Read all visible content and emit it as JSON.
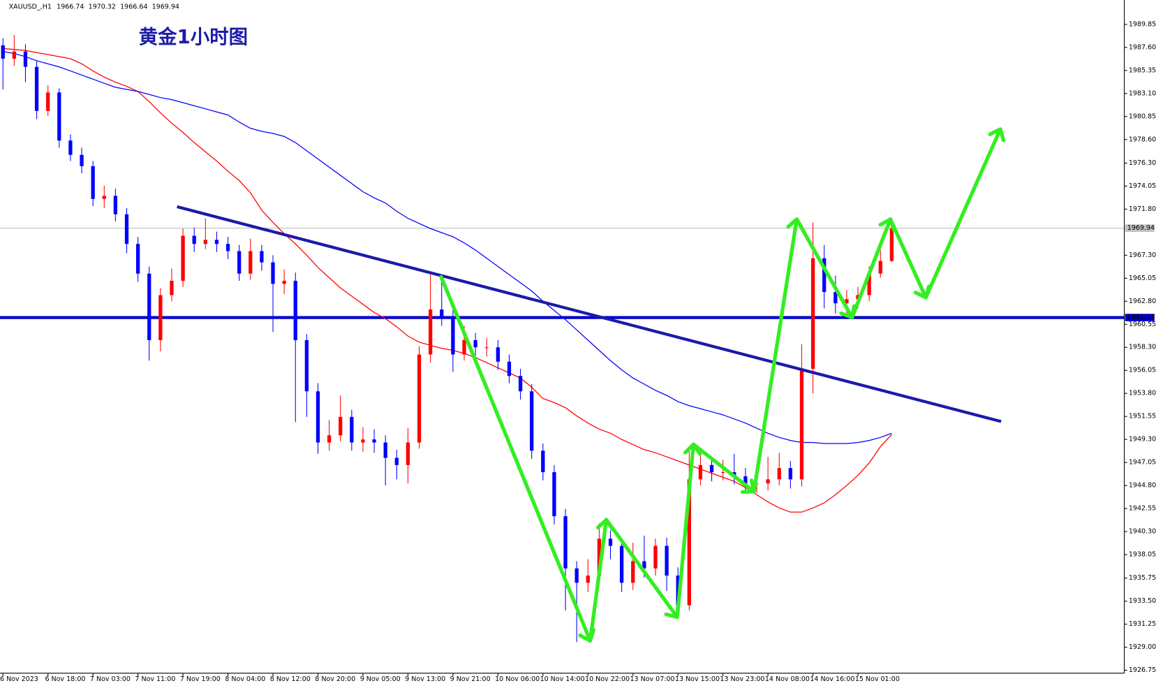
{
  "chart_data": {
    "type": "candlestick",
    "title": "黄金1小时图",
    "symbol": "XAUUSD_,H1",
    "up_color": "#ff0000",
    "down_color": "#0000ff",
    "hline": 1961.21,
    "hline_color": "#0000cc",
    "ylim": [
      1926.46,
      1992.23
    ],
    "yticks": [
      1989.85,
      {
        "value": 1987.6,
        "label": "1987.60"
      },
      1985.35,
      {
        "value": 1983.1,
        "label": "1983.10"
      },
      1980.85,
      {
        "value": 1978.6,
        "label": "1978.60"
      },
      {
        "value": 1976.3,
        "label": "1976.30"
      },
      1974.05,
      {
        "value": 1971.8,
        "label": "1971.80"
      },
      {
        "value": 1967.3,
        "label": "1967.30"
      },
      1965.05,
      {
        "value": 1962.8,
        "label": "1962.80"
      },
      1960.55,
      {
        "value": 1958.3,
        "label": "1958.30"
      },
      1956.05,
      {
        "value": 1953.8,
        "label": "1953.80"
      },
      1951.55,
      {
        "value": 1949.3,
        "label": "1949.30"
      },
      1947.05,
      {
        "value": 1944.8,
        "label": "1944.80"
      },
      1942.55,
      {
        "value": 1940.3,
        "label": "1940.30"
      },
      1938.05,
      1935.75,
      {
        "value": 1933.5,
        "label": "1933.50"
      },
      1931.25,
      {
        "value": 1929.0,
        "label": "1929.00"
      },
      1926.75
    ],
    "categories": [
      "6 Nov 2023",
      null,
      null,
      null,
      "6 Nov 18:00",
      null,
      null,
      null,
      "7 Nov 03:00",
      null,
      null,
      null,
      "7 Nov 11:00",
      null,
      null,
      null,
      "7 Nov 19:00",
      null,
      null,
      null,
      "8 Nov 04:00",
      null,
      null,
      null,
      "8 Nov 12:00",
      null,
      null,
      null,
      "8 Nov 20:00",
      null,
      null,
      null,
      "9 Nov 05:00",
      null,
      null,
      null,
      "9 Nov 13:00",
      null,
      null,
      null,
      "9 Nov 21:00",
      null,
      null,
      null,
      "10 Nov 06:00",
      null,
      null,
      null,
      "10 Nov 14:00",
      null,
      null,
      null,
      "10 Nov 22:00",
      null,
      null,
      null,
      "13 Nov 07:00",
      null,
      null,
      null,
      "13 Nov 15:00",
      null,
      null,
      null,
      "13 Nov 23:00",
      null,
      null,
      null,
      "14 Nov 08:00",
      null,
      null,
      null,
      "14 Nov 16:00",
      null,
      null,
      null,
      "15 Nov 01:00",
      null,
      null,
      null
    ],
    "open": [
      1987.8,
      1986.5,
      1987.2,
      1985.7,
      1981.4,
      1983.2,
      1978.5,
      1977.1,
      1976.0,
      1972.8,
      1973.1,
      1971.3,
      1968.4,
      1965.5,
      1959.0,
      1963.4,
      1964.8,
      1969.2,
      1968.4,
      1968.8,
      1968.4,
      1967.7,
      1965.5,
      1967.7,
      1966.6,
      1964.5,
      1964.8,
      1959.0,
      1954.0,
      1949.0,
      1949.7,
      1951.5,
      1949.0,
      1949.3,
      1949.0,
      1947.5,
      1946.8,
      1949.0,
      1957.6,
      1962.0,
      1961.2,
      1957.6,
      1959.0,
      1958.3,
      1958.3,
      1956.9,
      1955.5,
      1954.0,
      1948.2,
      1946.1,
      1941.8,
      1936.7,
      1935.3,
      1936.0,
      1939.6,
      1938.9,
      1935.3,
      1937.4,
      1936.7,
      1938.9,
      1936.0,
      1933.1,
      1945.4,
      1946.8,
      1946.1,
      1946.1,
      1945.7,
      1945.0,
      1945.0,
      1945.4,
      1946.5,
      1945.4,
      1956.2,
      1967.0,
      1963.7,
      1962.6,
      1963.0,
      1963.4,
      1965.5,
      1966.74
    ],
    "high": [
      1988.5,
      1988.8,
      1987.9,
      1986.3,
      1983.9,
      1983.6,
      1979.1,
      1977.8,
      1976.5,
      1974.1,
      1973.8,
      1971.9,
      1969.1,
      1966.2,
      1964.1,
      1966.0,
      1969.9,
      1970.0,
      1970.9,
      1969.6,
      1969.1,
      1968.3,
      1968.9,
      1968.3,
      1967.3,
      1965.9,
      1965.6,
      1959.6,
      1954.8,
      1951.2,
      1953.6,
      1952.2,
      1950.5,
      1950.3,
      1949.7,
      1948.3,
      1950.4,
      1958.4,
      1965.5,
      1964.9,
      1962.0,
      1960.4,
      1959.7,
      1959.2,
      1959.0,
      1957.6,
      1956.2,
      1954.7,
      1948.9,
      1946.8,
      1942.5,
      1937.4,
      1937.6,
      1941.1,
      1940.4,
      1939.6,
      1939.2,
      1939.9,
      1939.6,
      1939.7,
      1936.8,
      1948.6,
      1948.2,
      1947.6,
      1947.3,
      1947.9,
      1946.5,
      1946.0,
      1947.6,
      1948.0,
      1947.2,
      1958.6,
      1970.5,
      1968.3,
      1965.3,
      1963.9,
      1964.2,
      1966.2,
      1967.8,
      1970.32
    ],
    "low": [
      1983.5,
      1985.8,
      1984.2,
      1980.6,
      1980.9,
      1977.8,
      1976.5,
      1975.3,
      1972.1,
      1971.9,
      1970.6,
      1967.5,
      1964.7,
      1957.0,
      1957.9,
      1962.8,
      1964.2,
      1967.6,
      1967.9,
      1967.6,
      1966.9,
      1964.8,
      1964.9,
      1965.8,
      1959.8,
      1963.5,
      1951.0,
      1951.5,
      1947.9,
      1948.2,
      1949.1,
      1948.2,
      1948.1,
      1948.0,
      1944.8,
      1945.4,
      1945.0,
      1948.4,
      1956.8,
      1960.4,
      1955.9,
      1957.0,
      1957.5,
      1957.4,
      1956.1,
      1954.8,
      1953.2,
      1947.4,
      1945.3,
      1941.0,
      1932.6,
      1929.5,
      1934.4,
      1935.4,
      1937.6,
      1934.4,
      1934.6,
      1935.8,
      1936.0,
      1934.5,
      1932.4,
      1932.6,
      1944.8,
      1945.2,
      1945.3,
      1944.9,
      1944.2,
      1944.1,
      1944.3,
      1944.8,
      1944.5,
      1944.7,
      1953.8,
      1962.1,
      1961.6,
      1961.3,
      1962.1,
      1962.8,
      1965.1,
      1966.64
    ],
    "close": [
      1986.5,
      1987.2,
      1985.7,
      1981.4,
      1983.2,
      1978.5,
      1977.1,
      1976.0,
      1972.8,
      1973.1,
      1971.3,
      1968.4,
      1965.5,
      1959.0,
      1963.4,
      1964.8,
      1969.2,
      1968.4,
      1968.8,
      1968.4,
      1967.7,
      1965.5,
      1967.7,
      1966.6,
      1964.5,
      1964.8,
      1959.0,
      1954.0,
      1949.0,
      1949.7,
      1951.5,
      1949.0,
      1949.3,
      1949.0,
      1947.5,
      1946.8,
      1949.0,
      1957.6,
      1962.0,
      1961.2,
      1957.6,
      1959.0,
      1958.3,
      1958.3,
      1956.9,
      1955.5,
      1954.0,
      1948.2,
      1946.1,
      1941.8,
      1936.7,
      1935.3,
      1936.0,
      1939.6,
      1938.9,
      1935.3,
      1937.4,
      1936.7,
      1938.9,
      1936.0,
      1933.1,
      1945.4,
      1946.8,
      1946.1,
      1946.1,
      1945.7,
      1945.0,
      1945.0,
      1945.4,
      1946.5,
      1945.4,
      1956.2,
      1967.0,
      1963.7,
      1962.6,
      1963.0,
      1963.4,
      1965.5,
      1966.74,
      1969.94
    ],
    "ma_lines": [
      {
        "color": "#ff0000",
        "values": [
          1987.5,
          1987.4,
          1987.3,
          1987.1,
          1986.9,
          1986.7,
          1986.5,
          1986.0,
          1985.3,
          1984.7,
          1984.2,
          1983.8,
          1983.3,
          1982.3,
          1981.2,
          1980.2,
          1979.3,
          1978.3,
          1977.4,
          1976.5,
          1975.5,
          1974.6,
          1973.4,
          1971.7,
          1970.5,
          1969.4,
          1968.4,
          1967.3,
          1966.1,
          1965.1,
          1964.1,
          1963.3,
          1962.5,
          1961.7,
          1961.1,
          1960.3,
          1959.4,
          1958.8,
          1958.5,
          1958.2,
          1958.0,
          1957.7,
          1957.3,
          1956.8,
          1956.3,
          1955.8,
          1955.3,
          1954.4,
          1953.3,
          1952.9,
          1952.4,
          1951.6,
          1950.9,
          1950.3,
          1949.9,
          1949.3,
          1948.8,
          1948.3,
          1948.0,
          1947.6,
          1947.2,
          1946.8,
          1946.4,
          1946.0,
          1945.6,
          1945.2,
          1944.6,
          1943.9,
          1943.2,
          1942.6,
          1942.2,
          1942.2,
          1942.6,
          1943.1,
          1943.9,
          1944.8,
          1945.8,
          1947.0,
          1948.6,
          1949.8
        ]
      },
      {
        "color": "#0000ff",
        "values": [
          1987.2,
          1987.0,
          1986.7,
          1986.3,
          1986.0,
          1985.7,
          1985.3,
          1984.9,
          1984.5,
          1984.1,
          1983.7,
          1983.5,
          1983.3,
          1983.0,
          1982.7,
          1982.5,
          1982.2,
          1981.9,
          1981.6,
          1981.3,
          1981.0,
          1980.3,
          1979.7,
          1979.4,
          1979.2,
          1978.9,
          1978.3,
          1977.5,
          1976.7,
          1975.9,
          1975.1,
          1974.3,
          1973.5,
          1972.9,
          1972.4,
          1971.6,
          1970.9,
          1970.4,
          1969.9,
          1969.5,
          1969.1,
          1968.5,
          1967.8,
          1967.0,
          1966.2,
          1965.4,
          1964.6,
          1963.8,
          1962.8,
          1961.9,
          1961.0,
          1960.0,
          1959.0,
          1958.0,
          1957.0,
          1956.1,
          1955.3,
          1954.7,
          1954.1,
          1953.6,
          1953.0,
          1952.6,
          1952.3,
          1952.0,
          1951.7,
          1951.3,
          1950.9,
          1950.4,
          1949.9,
          1949.5,
          1949.2,
          1949.0,
          1949.0,
          1948.9,
          1948.9,
          1948.9,
          1949.0,
          1949.2,
          1949.5,
          1949.9
        ]
      }
    ]
  }
}
